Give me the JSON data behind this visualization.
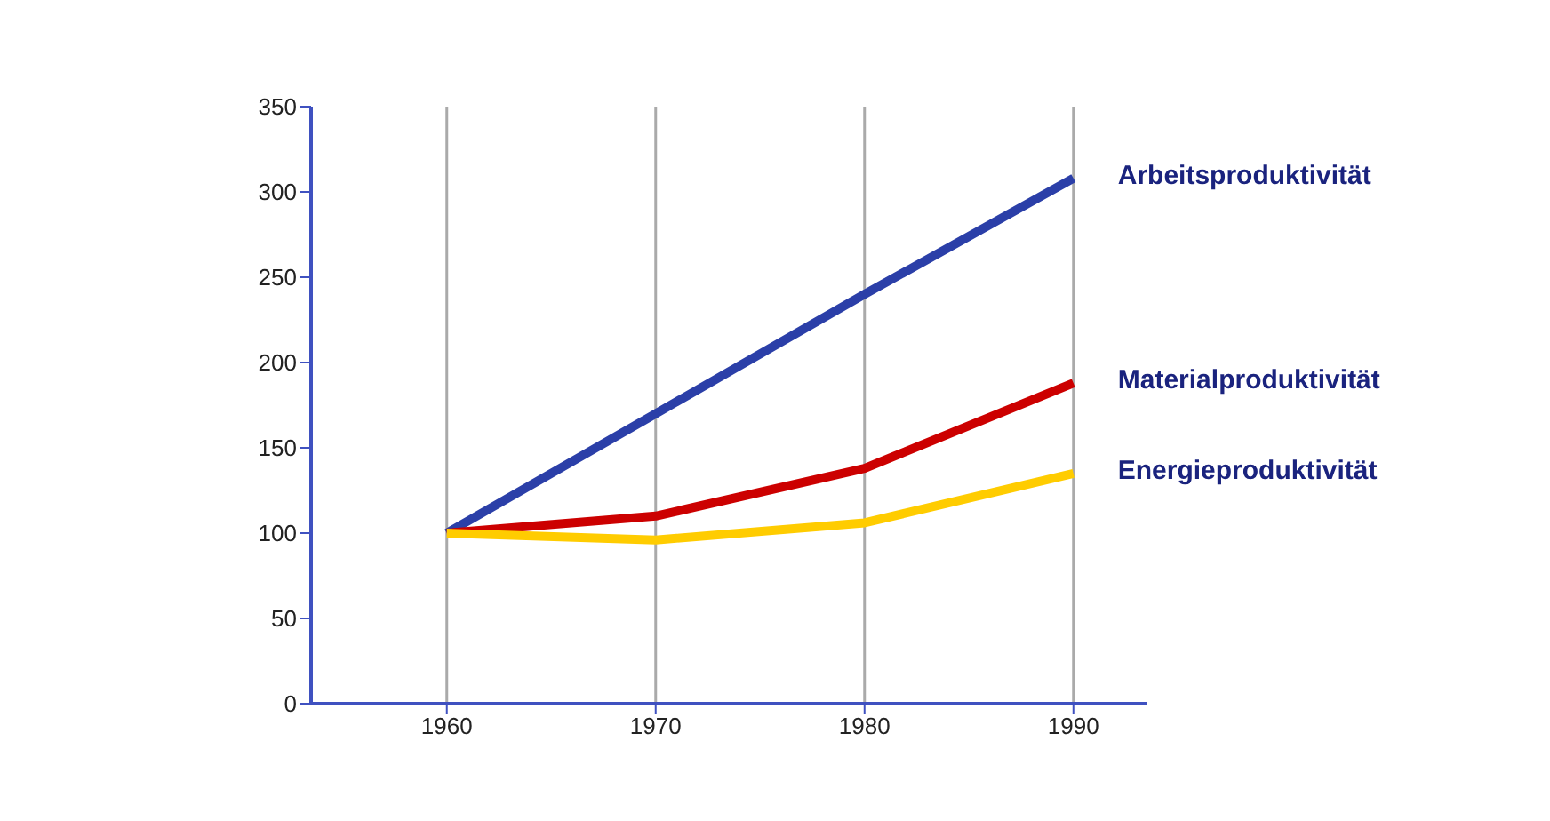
{
  "chart_data": {
    "type": "line",
    "x": [
      1960,
      1970,
      1980,
      1990
    ],
    "xlim": [
      1953.5,
      1993.5
    ],
    "xticks": [
      1960,
      1970,
      1980,
      1990
    ],
    "ylim": [
      0,
      350
    ],
    "yticks": [
      0,
      50,
      100,
      150,
      200,
      250,
      300,
      350
    ],
    "grid": "x",
    "legend": false,
    "marker": "none",
    "line_style": "solid",
    "series": [
      {
        "name": "Arbeitsproduktivität",
        "color": "#2b3fa8",
        "values": [
          100,
          170,
          240,
          308
        ]
      },
      {
        "name": "Materialproduktivität",
        "color": "#cc0000",
        "values": [
          100,
          110,
          138,
          188
        ]
      },
      {
        "name": "Energieproduktivität",
        "color": "#ffcc00",
        "values": [
          100,
          96,
          106,
          135
        ]
      }
    ]
  }
}
